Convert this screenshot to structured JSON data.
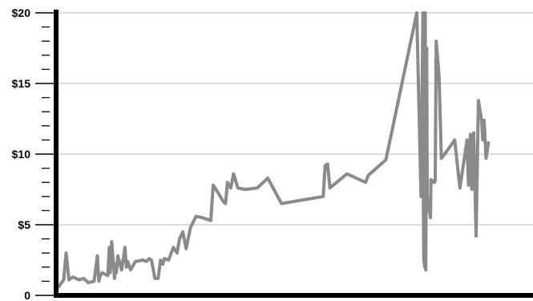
{
  "chart_data": {
    "type": "line",
    "title": "",
    "xlabel": "",
    "ylabel": "",
    "ylim": [
      0,
      20
    ],
    "xlim": [
      0,
      100
    ],
    "grid": true,
    "colors": {
      "line": "#8a8a8a",
      "axis": "#000000",
      "grid": "#c8c8c8"
    },
    "y_ticks": [
      {
        "value": 0,
        "label": "0"
      },
      {
        "value": 5,
        "label": "$5"
      },
      {
        "value": 10,
        "label": "$10"
      },
      {
        "value": 15,
        "label": "$15"
      },
      {
        "value": 20,
        "label": "$20"
      }
    ],
    "series": [
      {
        "x": [
          0,
          1.1,
          1.6,
          2.2,
          3.0,
          4.3,
          5.3,
          6.3,
          7.5,
          8.2,
          8.5,
          8.8,
          9.2,
          10.4,
          10.7,
          10.9,
          11.2,
          11.8,
          12.0,
          12.2,
          12.5,
          13.3,
          14.0,
          14.3,
          14.6,
          15.2,
          16.2,
          17.8,
          18.5,
          19.1,
          19.6,
          20.3,
          21.0,
          21.5,
          22.0,
          22.3,
          23.2,
          24.2,
          25.0,
          25.5,
          26.2,
          26.9,
          27.8,
          29.0,
          30.3,
          32.1,
          32.6,
          33.0,
          34.1,
          34.8,
          35.2,
          35.6,
          36.3,
          36.9,
          37.8,
          39.4,
          41.9,
          44.1,
          47.0,
          55.8,
          56.2,
          56.7,
          57.2,
          60.8,
          64.7,
          65.3,
          69.0,
          75.5,
          76.4,
          76.8,
          76.9,
          77.0,
          77.2,
          77.3,
          77.4,
          77.5,
          77.6,
          77.7,
          78.4,
          78.5,
          78.8,
          79.0,
          79.2,
          79.4,
          79.6,
          80.2,
          80.7,
          81.8,
          83.5,
          84.6,
          86.1,
          86.4,
          86.8,
          87.1,
          87.5,
          88.0,
          88.5,
          89.2,
          89.4,
          89.7,
          90.1,
          90.6
        ],
        "y": [
          0.6,
          1.1,
          3.0,
          1.1,
          1.3,
          1.1,
          1.2,
          0.9,
          1.0,
          2.8,
          1.0,
          1.4,
          1.6,
          1.4,
          3.4,
          1.6,
          3.8,
          1.2,
          2.2,
          1.6,
          2.8,
          1.8,
          3.4,
          2.0,
          2.4,
          1.8,
          2.4,
          2.5,
          2.4,
          2.6,
          2.5,
          1.2,
          1.2,
          2.5,
          2.2,
          2.6,
          2.5,
          3.4,
          3.0,
          4.0,
          4.5,
          3.3,
          4.8,
          5.6,
          5.5,
          5.3,
          7.8,
          7.6,
          7.0,
          6.6,
          6.5,
          8.0,
          7.6,
          8.6,
          7.6,
          7.5,
          7.6,
          8.3,
          6.5,
          7.0,
          9.2,
          9.3,
          7.6,
          8.6,
          8.0,
          8.5,
          9.6,
          20.0,
          7.0,
          20.0,
          6.5,
          2.5,
          2.0,
          20.0,
          1.8,
          8.0,
          17.5,
          7.0,
          5.5,
          8.2,
          8.0,
          8.1,
          8.0,
          8.1,
          18.0,
          15.5,
          9.7,
          10.2,
          11.0,
          7.6,
          11.0,
          7.8,
          11.4,
          7.5,
          11.5,
          4.2,
          13.8,
          12.3,
          11.0,
          12.4,
          9.7,
          10.8
        ]
      }
    ]
  }
}
